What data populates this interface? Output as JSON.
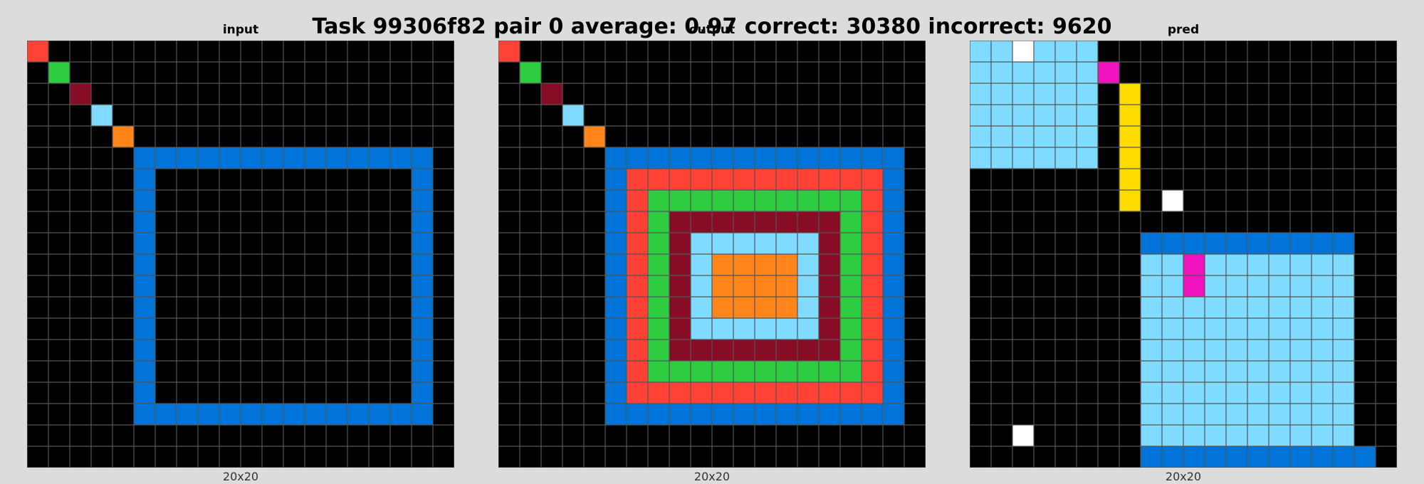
{
  "title": "Task 99306f82 pair 0 average: 0.97 correct: 30380 incorrect: 9620",
  "palette": {
    "0": "#000000",
    "1": "#0074d9",
    "2": "#ff4136",
    "3": "#2ecc40",
    "4": "#ffdc00",
    "5": "#aaaaaa",
    "6": "#f012be",
    "7": "#ff851b",
    "8": "#7fdbff",
    "9": "#870c25",
    "w": "#ffffff"
  },
  "grid_line_color": "#555555",
  "panels": [
    {
      "label": "input",
      "dims": "20x20",
      "rows": [
        "20000000000000000000",
        "03000000000000000000",
        "00900000000000000000",
        "00080000000000000000",
        "00007000000000000000",
        "00000111111111111110",
        "00000100000000000010",
        "00000100000000000010",
        "00000100000000000010",
        "00000100000000000010",
        "00000100000000000010",
        "00000100000000000010",
        "00000100000000000010",
        "00000100000000000010",
        "00000100000000000010",
        "00000100000000000010",
        "00000100000000000010",
        "00000111111111111110",
        "00000000000000000000",
        "00000000000000000000"
      ]
    },
    {
      "label": "output",
      "dims": "20x20",
      "rows": [
        "20000000000000000000",
        "03000000000000000000",
        "00900000000000000000",
        "00080000000000000000",
        "00007000000000000000",
        "00000111111111111110",
        "00000122222222222210",
        "00000123333333333210",
        "00000123999999993210",
        "00000123988888893210",
        "00000123987777893210",
        "00000123987777893210",
        "00000123987777893210",
        "00000123988888893210",
        "00000123999999993210",
        "00000123333333333210",
        "00000122222222222210",
        "00000111111111111110",
        "00000000000000000000",
        "00000000000000000000"
      ]
    },
    {
      "label": "pred",
      "dims": "20x20",
      "rows": [
        "88w88800000000000000",
        "88888860000000000000",
        "88888804000000000000",
        "88888804000000000000",
        "88888804000000000000",
        "88888804000000000000",
        "00000004000000000000",
        "000000040w0000000000",
        "00000000000000000000",
        "00000000111111111100",
        "00000000886888888800",
        "00000000886888888800",
        "00000000888888888800",
        "00000000888888888800",
        "00000000888888888800",
        "00000000888888888800",
        "00000000888888888800",
        "00000000888888888800",
        "00w00000888888888800",
        "00000000111111111110"
      ]
    }
  ]
}
